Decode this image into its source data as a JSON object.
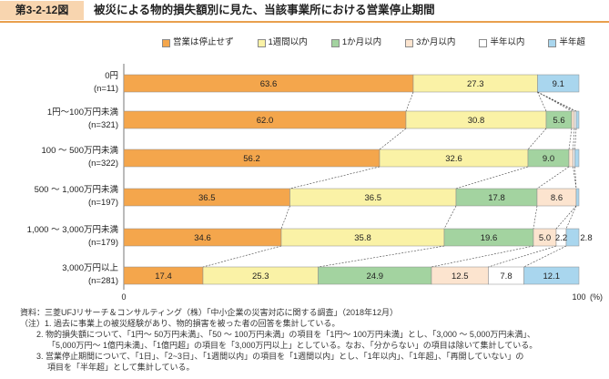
{
  "header": {
    "figure_label": "第3-2-12図",
    "title": "被災による物的損失額別に見た、当該事業所における営業停止期間"
  },
  "colors": {
    "label_box": "#F8D5AF",
    "accent_rule": "#E9A04E"
  },
  "chart_data": {
    "type": "bar",
    "orientation": "horizontal",
    "stacked": true,
    "categories": [
      "0円",
      "1円～100万円未満",
      "100 ～ 500万円未満",
      "500 ～ 1,000万円未満",
      "1,000 ～ 3,000万円未満",
      "3,000万円以上"
    ],
    "n_labels": [
      "(n=11)",
      "(n=321)",
      "(n=322)",
      "(n=197)",
      "(n=179)",
      "(n=281)"
    ],
    "series": [
      {
        "name": "営業は停止せず",
        "color": "#F4A64C",
        "values": [
          63.6,
          62.0,
          56.2,
          36.5,
          34.6,
          17.4
        ],
        "labels": [
          "63.6",
          "62.0",
          "56.2",
          "36.5",
          "34.6",
          "17.4"
        ]
      },
      {
        "name": "1週間以内",
        "color": "#FAF2A6",
        "values": [
          27.3,
          30.8,
          32.6,
          36.5,
          35.8,
          25.3
        ],
        "labels": [
          "27.3",
          "30.8",
          "32.6",
          "36.5",
          "35.8",
          "25.3"
        ]
      },
      {
        "name": "1か月以内",
        "color": "#A3D3A0",
        "values": [
          0,
          5.6,
          9.0,
          17.8,
          19.6,
          24.9
        ],
        "labels": [
          null,
          "5.6",
          "9.0",
          "17.8",
          "19.6",
          "24.9"
        ]
      },
      {
        "name": "3か月以内",
        "color": "#FCE4CF",
        "values": [
          0,
          0.6,
          0.9,
          8.6,
          5.0,
          12.5
        ],
        "labels": [
          null,
          null,
          null,
          "8.6",
          "5.0",
          "12.5"
        ]
      },
      {
        "name": "半年以内",
        "color": "#FFFFFF",
        "values": [
          0,
          0.4,
          0.4,
          0.0,
          2.2,
          7.8
        ],
        "labels": [
          null,
          null,
          null,
          null,
          "2.2",
          "7.8"
        ]
      },
      {
        "name": "半年超",
        "color": "#A9D6EE",
        "values": [
          9.1,
          0.6,
          0.9,
          0.6,
          2.8,
          12.1
        ],
        "labels": [
          "9.1",
          null,
          null,
          null,
          "2.8",
          "12.1"
        ]
      }
    ],
    "xlim": [
      0,
      100
    ],
    "x_tick_labels": [
      "0",
      "100"
    ],
    "x_unit": "(%)",
    "legend_position": "top-right"
  },
  "notes": {
    "lines": [
      "資料：三菱UFJリサーチ＆コンサルティング（株）「中小企業の災害対応に関する調査」（2018年12月）",
      "（注）1. 過去に事業上の被災経験があり、物的損害を被った者の回答を集計している。",
      "2. 物的損失額について、「1円～ 50万円未満」、「50 ～ 100万円未満」の項目を「1円～ 100万円未満」とし、「3,000 ～ 5,000万円未満」、",
      "「5,000万円～ 1億円未満」、「1億円超」の項目を「3,000万円以上」としている。なお、「分からない」の項目は除いて集計している。",
      "3. 営業停止期間について、「1日」、「2~3日」、「1週間以内」の項目を「1週間以内」とし、「1年以内」、「1年超」、「再開していない」の",
      "項目を「半年超」として集計している。"
    ]
  }
}
